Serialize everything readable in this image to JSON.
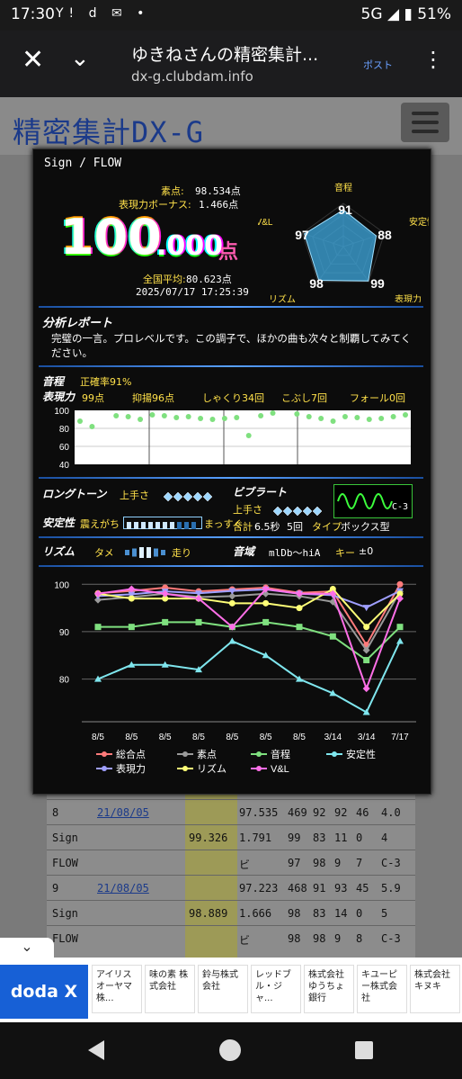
{
  "status_bar": {
    "time": "17:30",
    "icons_left": "Y! d ✉ •",
    "network": "5G",
    "battery": "51%"
  },
  "browser": {
    "title": "ゆきねさんの精密集計...",
    "url": "dx-g.clubdam.info",
    "post_label": "ポスト"
  },
  "site": {
    "logo": "精密集計DX-G"
  },
  "score": {
    "song": "Sign / FLOW",
    "raw_label": "素点:",
    "raw_value": "98.534点",
    "bonus_label": "表現力ボーナス:",
    "bonus_value": "1.466点",
    "total_int": "100",
    "total_dec": ".000",
    "total_unit": "点",
    "avg_label": "全国平均:",
    "avg_value": "80.623点",
    "datetime": "2025/07/17 17:25:39"
  },
  "radar": {
    "labels": {
      "pitch": "音程",
      "stability": "安定性",
      "expression": "表現力",
      "rhythm": "リズム",
      "vl": "V&L"
    },
    "values": {
      "pitch": 91,
      "stability": 88,
      "expression": 99,
      "rhythm": 98,
      "vl": 97
    },
    "fill": "#3fa9e0"
  },
  "analysis": {
    "heading": "分析レポート",
    "text": "完璧の一言。プロレベルです。この調子で、ほかの曲も次々と制覇してみてください。"
  },
  "pitch_section": {
    "pitch_label": "音程",
    "accuracy_label": "正確率91%",
    "expression_label": "表現力",
    "expression_score": "99点",
    "yokuyo": "抑揚96点",
    "shakuri": "しゃくり34回",
    "kobushi": "こぶし7回",
    "fall": "フォール0回",
    "yticks": [
      "100",
      "80",
      "60",
      "40"
    ],
    "wave": [
      88,
      82,
      null,
      94,
      93,
      90,
      95,
      94,
      92,
      93,
      91,
      90,
      91,
      92,
      72,
      94,
      97,
      null,
      96,
      93,
      91,
      88,
      93,
      92,
      90,
      91,
      93,
      95
    ]
  },
  "long_tone": {
    "label": "ロングトーン",
    "skill_label": "上手さ"
  },
  "vibrato": {
    "label": "ビブラート",
    "skill_label": "上手さ",
    "type_chip": "C-3",
    "total_label": "合計",
    "total_value": "6.5秒",
    "count": "5回",
    "type_label": "タイプ",
    "type_value": "ボックス型"
  },
  "stability": {
    "label": "安定性",
    "left": "震えがち",
    "right": "まっすぐ"
  },
  "rhythm": {
    "label": "リズム",
    "left": "タメ",
    "right": "走り"
  },
  "range": {
    "label": "音域",
    "value": "mlDb～hiA",
    "key_label": "キー",
    "key_value": "±0"
  },
  "chart_data": {
    "type": "line",
    "categories": [
      "8/5",
      "8/5",
      "8/5",
      "8/5",
      "8/5",
      "8/5",
      "8/5",
      "3/14",
      "3/14",
      "7/17"
    ],
    "ylim": [
      71,
      101
    ],
    "yticks": [
      "100",
      "90",
      "80"
    ],
    "series": [
      {
        "name": "総合点",
        "color": "#ff7b7b",
        "marker": "circle",
        "values": [
          98.1,
          98.6,
          99.3,
          98.5,
          98.9,
          99.3,
          98.2,
          98.5,
          87.2,
          100
        ]
      },
      {
        "name": "素点",
        "color": "#9a9a9a",
        "marker": "diamond",
        "values": [
          96.7,
          97.3,
          98.0,
          97.3,
          97.5,
          98.0,
          97.5,
          96.3,
          86.1,
          98.5
        ]
      },
      {
        "name": "音程",
        "color": "#7fe07f",
        "marker": "square",
        "values": [
          91,
          91,
          92,
          92,
          91,
          92,
          91,
          89,
          84,
          91
        ]
      },
      {
        "name": "安定性",
        "color": "#7fe6ee",
        "marker": "triangle",
        "values": [
          80,
          83,
          83,
          82,
          88,
          85,
          80,
          77,
          73,
          88
        ]
      },
      {
        "name": "表現力",
        "color": "#9f9fff",
        "marker": "tri-down",
        "values": [
          97.5,
          97.9,
          98.5,
          98.1,
          98.6,
          98.9,
          98.0,
          97.7,
          95.1,
          98.6
        ]
      },
      {
        "name": "リズム",
        "color": "#ffff77",
        "marker": "circle",
        "values": [
          98,
          97,
          97,
          97,
          96,
          96,
          95,
          99,
          91,
          98
        ]
      },
      {
        "name": "V&L",
        "color": "#ff6fe8",
        "marker": "diamond",
        "values": [
          98,
          99,
          98,
          97,
          91,
          99,
          98,
          98,
          78,
          97
        ]
      }
    ]
  },
  "background_table": {
    "rows": [
      [
        "8",
        "21/08/05",
        "",
        "97.535",
        "469",
        "92",
        "92",
        "46",
        "4.0"
      ],
      [
        "Sign",
        "",
        "99.326",
        "1.791",
        "99",
        "83",
        "11",
        "0",
        "4"
      ],
      [
        "FLOW",
        "",
        "",
        "ビ",
        "97",
        "98",
        "9",
        "7",
        "C-3"
      ],
      [
        "9",
        "21/08/05",
        "",
        "97.223",
        "468",
        "91",
        "93",
        "45",
        "5.9"
      ],
      [
        "Sign",
        "",
        "98.889",
        "1.666",
        "98",
        "83",
        "14",
        "0",
        "5"
      ],
      [
        "FLOW",
        "",
        "",
        "ビ",
        "98",
        "98",
        "9",
        "8",
        "C-3"
      ]
    ]
  },
  "ad": {
    "brand": "doda X",
    "tiles": [
      "アイリスオーヤマ株...",
      "味の素 株式会社",
      "鈴与株式会社",
      "レッドブル・ジャ...",
      "株式会社ゆうちょ銀行",
      "キユーピー株式会社",
      "株式会社キヌキ"
    ]
  }
}
